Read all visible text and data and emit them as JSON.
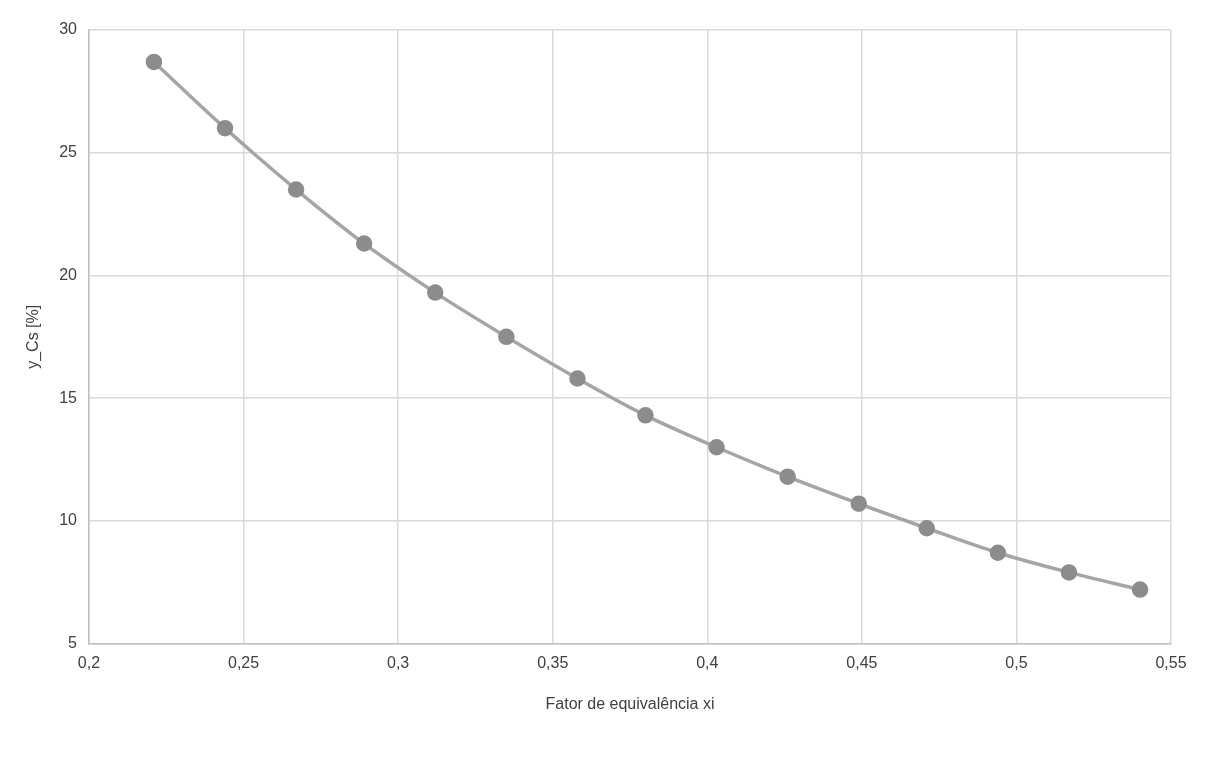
{
  "chart_data": {
    "type": "line",
    "xlabel": "Fator de equivalência xi",
    "ylabel": "y_Cs [%]",
    "x": [
      0.221,
      0.244,
      0.267,
      0.289,
      0.312,
      0.335,
      0.358,
      0.38,
      0.403,
      0.426,
      0.449,
      0.471,
      0.494,
      0.517,
      0.54
    ],
    "series": [
      {
        "color": "#8c8c8c",
        "values": [
          28.7,
          26.0,
          23.5,
          21.3,
          19.3,
          17.5,
          15.8,
          14.3,
          13.0,
          11.8,
          10.7,
          9.7,
          8.7,
          7.9,
          7.2
        ]
      }
    ],
    "xlim": [
      0.2,
      0.55
    ],
    "xticks": [
      {
        "value": 0.2,
        "label": "0,2"
      },
      {
        "value": 0.25,
        "label": "0,25"
      },
      {
        "value": 0.3,
        "label": "0,3"
      },
      {
        "value": 0.35,
        "label": "0,35"
      },
      {
        "value": 0.4,
        "label": "0,4"
      },
      {
        "value": 0.45,
        "label": "0,45"
      },
      {
        "value": 0.5,
        "label": "0,5"
      },
      {
        "value": 0.55,
        "label": "0,55"
      }
    ],
    "ylim": [
      5,
      30
    ],
    "yticks": [
      5,
      10,
      15,
      20,
      25,
      30
    ],
    "grid": true,
    "marker": "circle",
    "line_style": "solid",
    "legend": false
  }
}
